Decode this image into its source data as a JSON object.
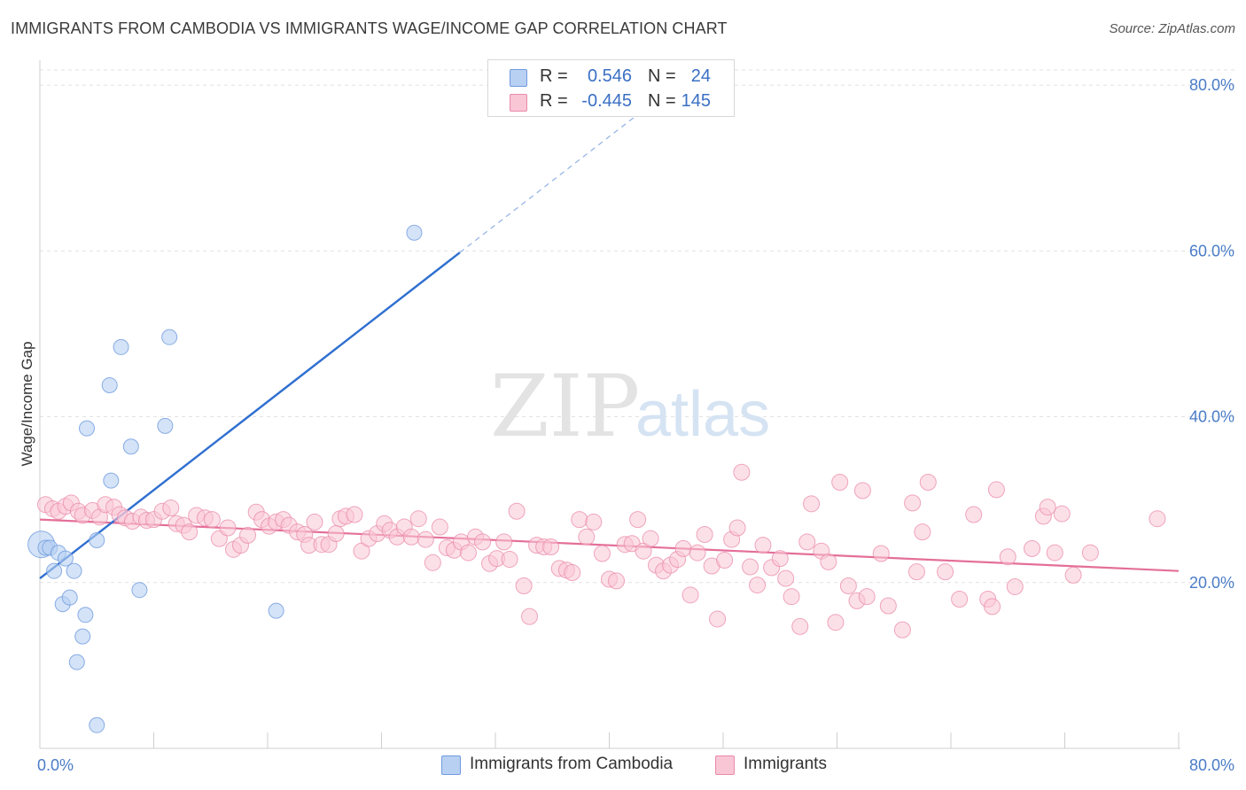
{
  "title": "IMMIGRANTS FROM CAMBODIA VS IMMIGRANTS WAGE/INCOME GAP CORRELATION CHART",
  "source": "Source: ZipAtlas.com",
  "watermark": {
    "zip": "ZIP",
    "atlas": "atlas"
  },
  "legend": {
    "rows": [
      {
        "r_label": "R =",
        "r_value": "0.546",
        "n_label": "N =",
        "n_value": "24",
        "color": "#b8d0f2",
        "border": "#6f9be0"
      },
      {
        "r_label": "R =",
        "r_value": "-0.445",
        "n_label": "N =",
        "n_value": "145",
        "color": "#f9c6d6",
        "border": "#e98aaa"
      }
    ]
  },
  "bottom_legend": [
    {
      "label": "Immigrants from Cambodia",
      "color": "#b8d0f2",
      "border": "#6f9be0"
    },
    {
      "label": "Immigrants",
      "color": "#f9c6d6",
      "border": "#e98aaa"
    }
  ],
  "chart_data": {
    "type": "scatter",
    "ylabel": "Wage/Income Gap",
    "xlim": [
      0,
      80
    ],
    "ylim": [
      0,
      83
    ],
    "x_tick_labels": [
      "0.0%",
      "80.0%"
    ],
    "y_ticks": [
      20,
      40,
      60,
      80
    ],
    "y_tick_labels": [
      "20.0%",
      "40.0%",
      "60.0%",
      "80.0%"
    ],
    "grid": true,
    "series": [
      {
        "name": "Immigrants from Cambodia",
        "color": "#6f9be0",
        "fill": "#b8d0f2",
        "points": [
          [
            0.1,
            24.6
          ],
          [
            0.4,
            24.2
          ],
          [
            0.7,
            24.2
          ],
          [
            1.0,
            21.4
          ],
          [
            1.3,
            23.6
          ],
          [
            1.6,
            17.4
          ],
          [
            1.8,
            22.9
          ],
          [
            2.1,
            18.2
          ],
          [
            2.4,
            21.4
          ],
          [
            2.6,
            10.4
          ],
          [
            3.0,
            13.5
          ],
          [
            3.2,
            16.1
          ],
          [
            3.3,
            38.6
          ],
          [
            4.0,
            25.1
          ],
          [
            4.0,
            2.8
          ],
          [
            4.9,
            43.8
          ],
          [
            5.0,
            32.3
          ],
          [
            5.7,
            48.4
          ],
          [
            6.4,
            36.4
          ],
          [
            7.0,
            19.1
          ],
          [
            8.8,
            38.9
          ],
          [
            9.1,
            49.6
          ],
          [
            16.6,
            16.6
          ],
          [
            26.3,
            62.2
          ]
        ],
        "trend": {
          "x": [
            0,
            29.5
          ],
          "y": [
            20.5,
            59.8
          ],
          "dashed_to": [
            45,
            80.5
          ]
        }
      },
      {
        "name": "Immigrants",
        "color": "#e98aaa",
        "fill": "#f9c6d6",
        "points": [
          [
            0.4,
            29.4
          ],
          [
            0.9,
            28.9
          ],
          [
            1.3,
            28.6
          ],
          [
            1.8,
            29.2
          ],
          [
            2.2,
            29.6
          ],
          [
            2.7,
            28.6
          ],
          [
            3.0,
            28.1
          ],
          [
            3.7,
            28.7
          ],
          [
            4.2,
            27.9
          ],
          [
            4.6,
            29.4
          ],
          [
            5.2,
            29.1
          ],
          [
            5.6,
            28.2
          ],
          [
            6.0,
            27.8
          ],
          [
            6.5,
            27.4
          ],
          [
            7.1,
            27.9
          ],
          [
            7.5,
            27.5
          ],
          [
            8.0,
            27.6
          ],
          [
            8.6,
            28.6
          ],
          [
            9.2,
            29.0
          ],
          [
            9.6,
            27.1
          ],
          [
            10.1,
            26.9
          ],
          [
            10.5,
            26.1
          ],
          [
            11.0,
            28.1
          ],
          [
            11.6,
            27.8
          ],
          [
            12.1,
            27.6
          ],
          [
            12.6,
            25.3
          ],
          [
            13.2,
            26.6
          ],
          [
            13.6,
            24.0
          ],
          [
            14.1,
            24.5
          ],
          [
            14.6,
            25.7
          ],
          [
            15.2,
            28.5
          ],
          [
            15.6,
            27.6
          ],
          [
            16.1,
            26.8
          ],
          [
            16.6,
            27.3
          ],
          [
            17.1,
            27.6
          ],
          [
            17.5,
            26.9
          ],
          [
            18.1,
            26.1
          ],
          [
            18.6,
            25.8
          ],
          [
            18.9,
            24.5
          ],
          [
            19.3,
            27.3
          ],
          [
            19.8,
            24.6
          ],
          [
            20.3,
            24.6
          ],
          [
            20.8,
            25.9
          ],
          [
            21.1,
            27.7
          ],
          [
            21.5,
            28.0
          ],
          [
            22.1,
            28.2
          ],
          [
            22.6,
            23.8
          ],
          [
            23.1,
            25.3
          ],
          [
            23.7,
            25.9
          ],
          [
            24.2,
            27.1
          ],
          [
            24.6,
            26.3
          ],
          [
            25.1,
            25.5
          ],
          [
            25.6,
            26.7
          ],
          [
            26.1,
            25.5
          ],
          [
            26.6,
            27.7
          ],
          [
            27.1,
            25.2
          ],
          [
            27.6,
            22.4
          ],
          [
            28.1,
            26.7
          ],
          [
            28.6,
            24.2
          ],
          [
            29.1,
            23.9
          ],
          [
            29.6,
            24.9
          ],
          [
            30.1,
            23.6
          ],
          [
            30.6,
            25.5
          ],
          [
            31.1,
            24.9
          ],
          [
            31.6,
            22.3
          ],
          [
            32.1,
            22.9
          ],
          [
            32.6,
            24.9
          ],
          [
            33.0,
            22.8
          ],
          [
            33.5,
            28.6
          ],
          [
            34.0,
            19.6
          ],
          [
            34.4,
            15.9
          ],
          [
            34.9,
            24.5
          ],
          [
            35.4,
            24.3
          ],
          [
            35.9,
            24.3
          ],
          [
            36.5,
            21.7
          ],
          [
            37.0,
            21.5
          ],
          [
            37.4,
            21.2
          ],
          [
            37.9,
            27.6
          ],
          [
            38.4,
            25.5
          ],
          [
            38.9,
            27.3
          ],
          [
            39.5,
            23.5
          ],
          [
            40.0,
            20.4
          ],
          [
            40.5,
            20.2
          ],
          [
            41.1,
            24.6
          ],
          [
            41.6,
            24.7
          ],
          [
            42.0,
            27.6
          ],
          [
            42.4,
            23.8
          ],
          [
            42.9,
            25.3
          ],
          [
            43.3,
            22.1
          ],
          [
            43.8,
            21.4
          ],
          [
            44.3,
            22.1
          ],
          [
            44.8,
            22.8
          ],
          [
            45.2,
            24.1
          ],
          [
            45.7,
            18.5
          ],
          [
            46.2,
            23.6
          ],
          [
            46.7,
            25.8
          ],
          [
            47.2,
            22.0
          ],
          [
            47.6,
            15.6
          ],
          [
            48.1,
            22.7
          ],
          [
            48.6,
            25.2
          ],
          [
            49.0,
            26.6
          ],
          [
            49.3,
            33.3
          ],
          [
            49.9,
            21.9
          ],
          [
            50.4,
            19.7
          ],
          [
            50.8,
            24.5
          ],
          [
            51.4,
            21.8
          ],
          [
            52.0,
            22.9
          ],
          [
            52.4,
            20.5
          ],
          [
            52.8,
            18.3
          ],
          [
            53.4,
            14.7
          ],
          [
            53.9,
            24.9
          ],
          [
            54.2,
            29.5
          ],
          [
            54.9,
            23.8
          ],
          [
            55.4,
            22.5
          ],
          [
            55.9,
            15.2
          ],
          [
            56.2,
            32.1
          ],
          [
            56.8,
            19.6
          ],
          [
            57.4,
            17.8
          ],
          [
            57.8,
            31.1
          ],
          [
            58.1,
            18.3
          ],
          [
            59.1,
            23.5
          ],
          [
            59.6,
            17.2
          ],
          [
            60.6,
            14.3
          ],
          [
            61.3,
            29.6
          ],
          [
            61.6,
            21.3
          ],
          [
            62.0,
            26.1
          ],
          [
            62.4,
            32.1
          ],
          [
            63.6,
            21.3
          ],
          [
            64.6,
            18.0
          ],
          [
            65.6,
            28.2
          ],
          [
            66.6,
            18.0
          ],
          [
            66.9,
            17.1
          ],
          [
            67.2,
            31.2
          ],
          [
            68.0,
            23.1
          ],
          [
            68.5,
            19.5
          ],
          [
            69.7,
            24.1
          ],
          [
            70.5,
            28.0
          ],
          [
            70.8,
            29.1
          ],
          [
            71.3,
            23.6
          ],
          [
            71.8,
            28.3
          ],
          [
            72.6,
            20.9
          ],
          [
            73.8,
            23.6
          ],
          [
            78.5,
            27.7
          ]
        ],
        "trend": {
          "x": [
            0,
            80
          ],
          "y": [
            27.6,
            21.4
          ]
        }
      }
    ]
  }
}
